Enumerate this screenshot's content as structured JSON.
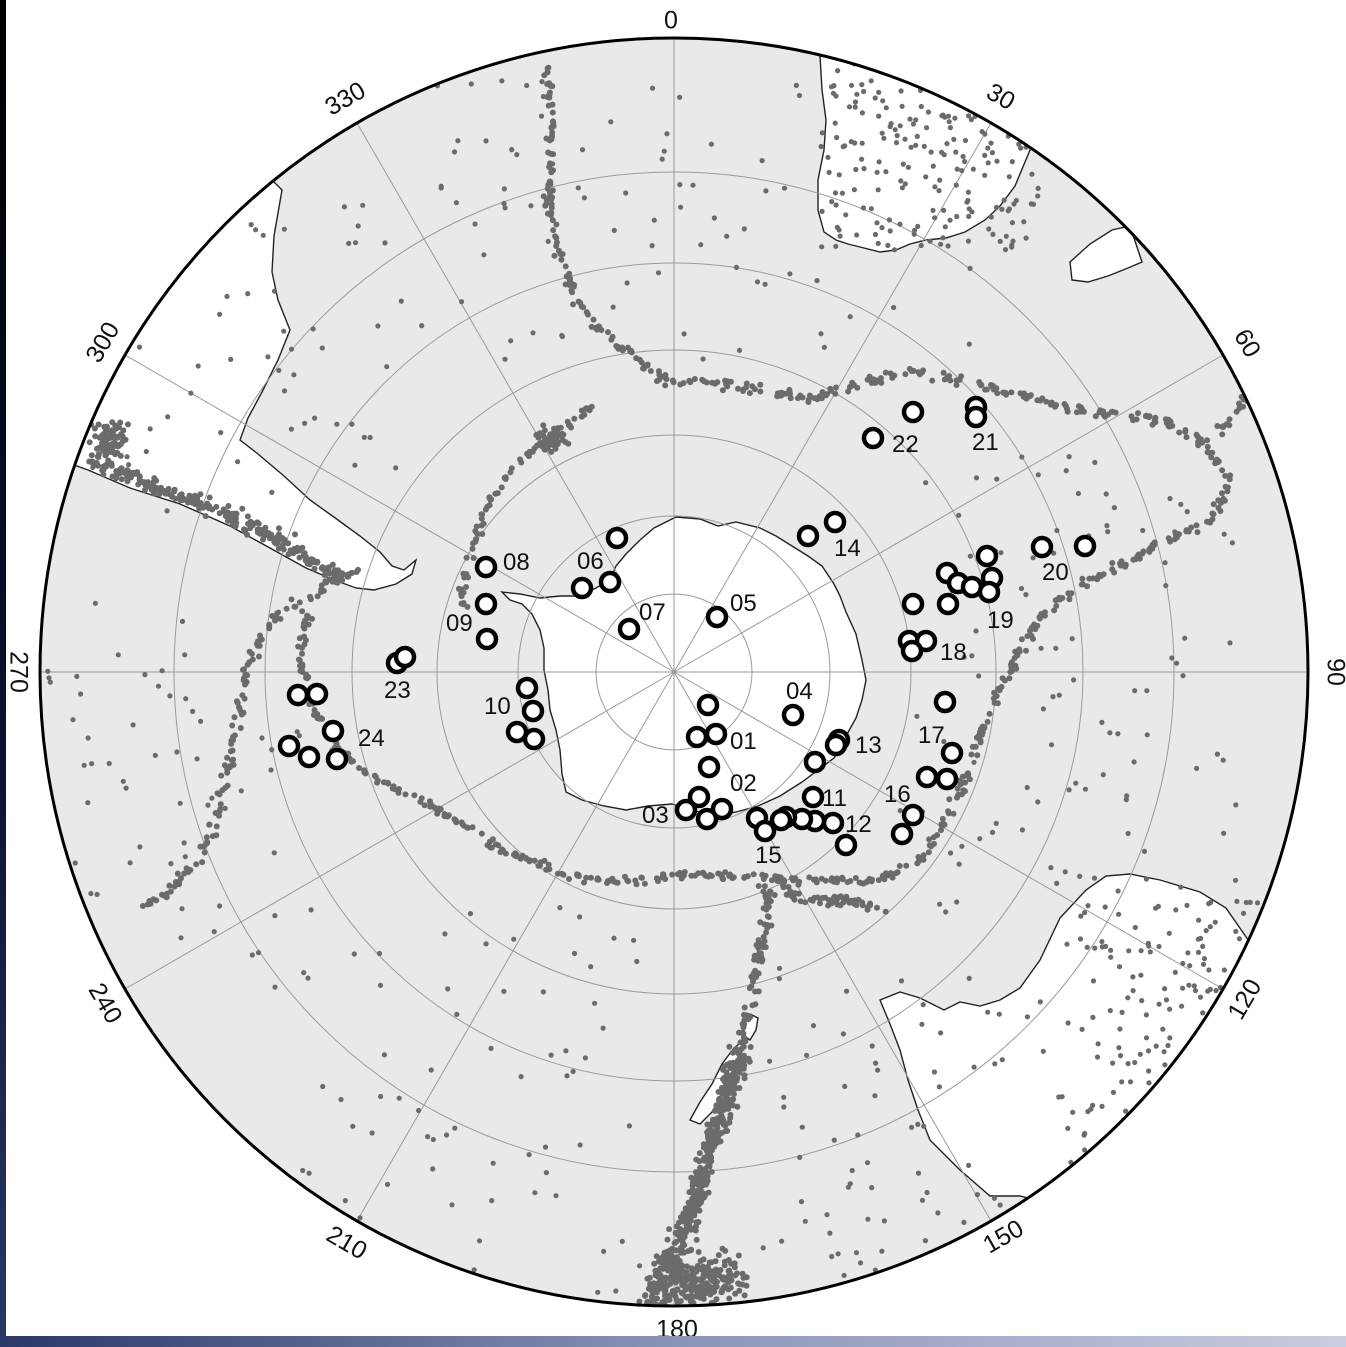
{
  "projection": "south-polar-stereographic",
  "colors": {
    "ocean": "#e9e9e9",
    "land": "#ffffff",
    "seismicity": "#6b6b6b",
    "event_ring": "#000000",
    "graticule": "#9a9a9a",
    "coastline": "#222222"
  },
  "longitude_labels": [
    "0",
    "30",
    "60",
    "90",
    "120",
    "150",
    "180",
    "210",
    "240",
    "270",
    "300",
    "330"
  ],
  "event_labels": [
    "01",
    "02",
    "03",
    "04",
    "05",
    "06",
    "07",
    "08",
    "09",
    "10",
    "11",
    "12",
    "13",
    "14",
    "15",
    "16",
    "17",
    "18",
    "19",
    "20",
    "21",
    "22",
    "23",
    "24"
  ]
}
